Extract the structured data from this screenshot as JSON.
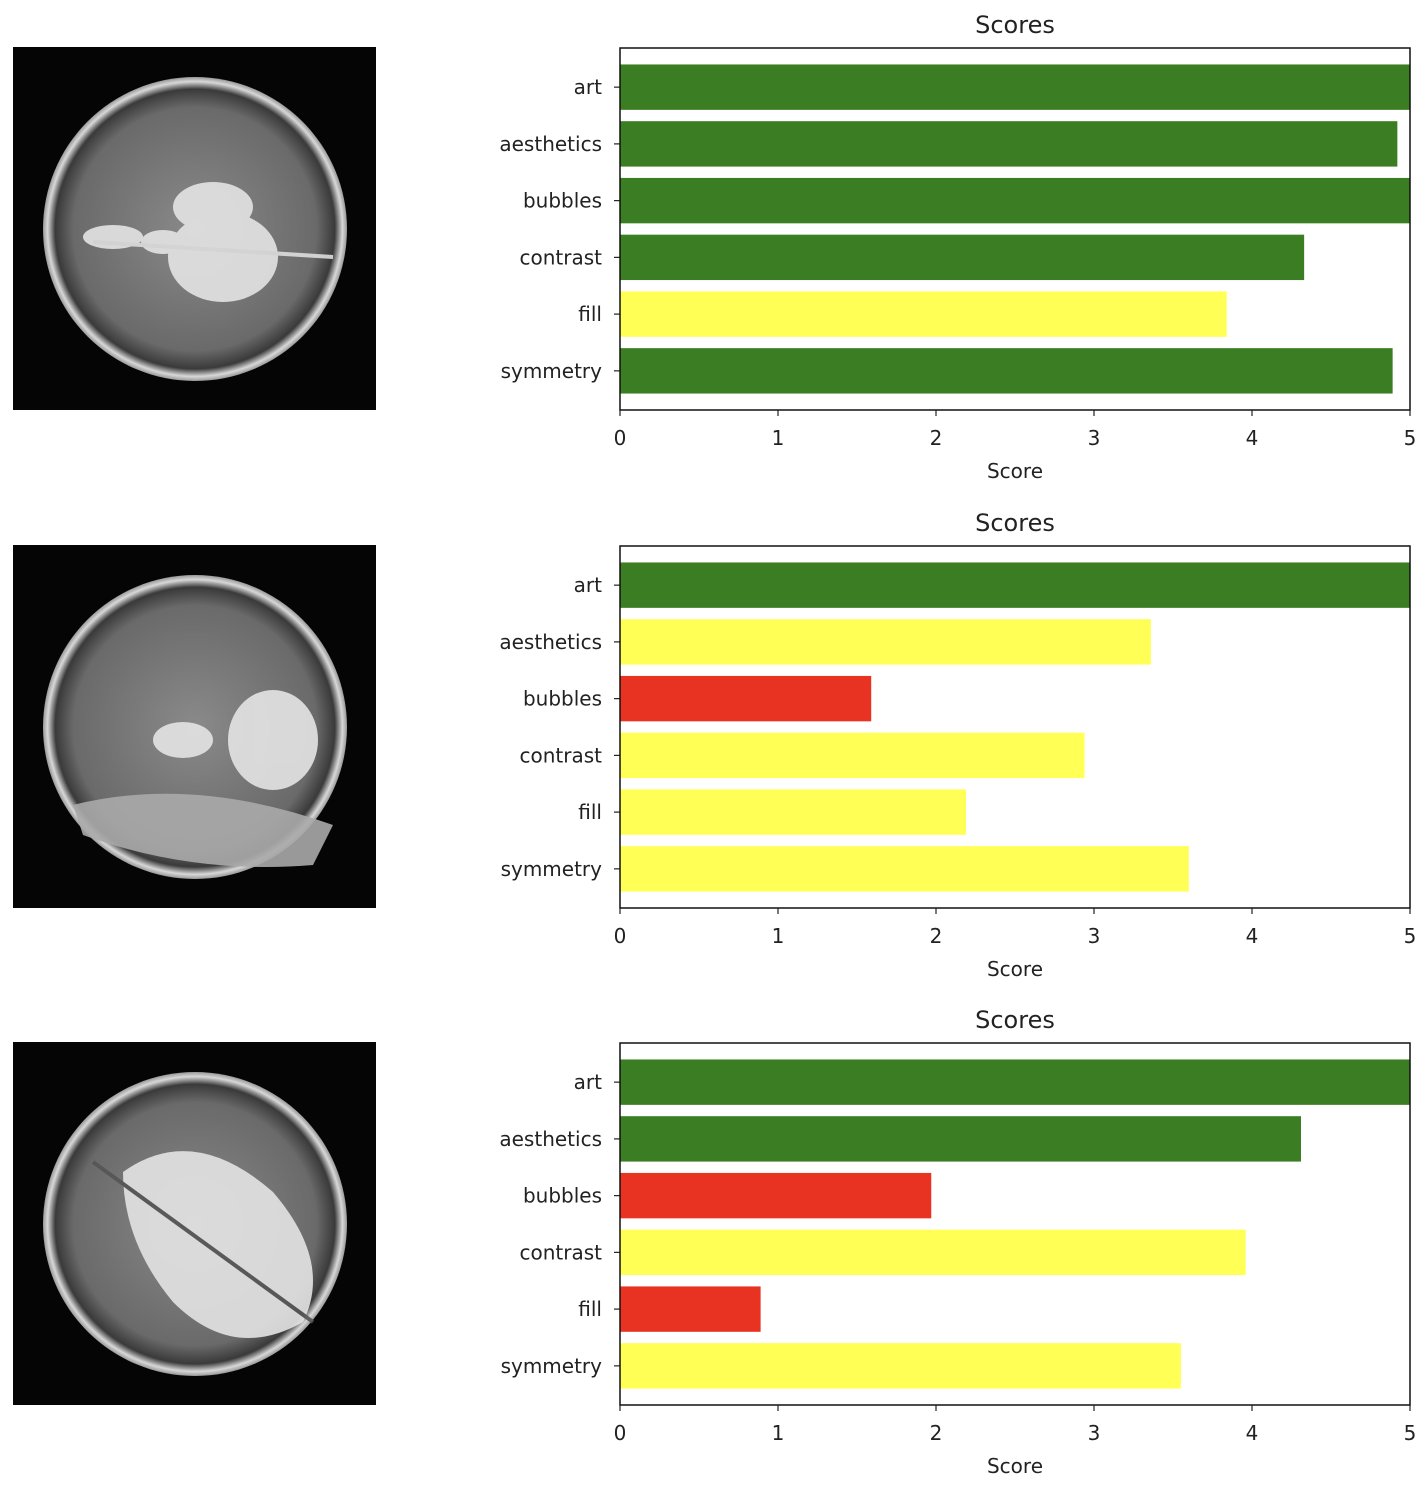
{
  "colors": {
    "good": "#3a7d22",
    "medium": "#ffff55",
    "poor": "#e83323"
  },
  "chart_data": [
    {
      "type": "bar",
      "orientation": "horizontal",
      "title": "Scores",
      "xlabel": "Score",
      "ylabel": "",
      "xlim": [
        0,
        5
      ],
      "xticks": [
        "0",
        "1",
        "2",
        "3",
        "4",
        "5"
      ],
      "categories": [
        "art",
        "aesthetics",
        "bubbles",
        "contrast",
        "fill",
        "symmetry"
      ],
      "values": [
        5.0,
        4.92,
        5.0,
        4.33,
        3.84,
        4.89
      ],
      "bar_colors": [
        "good",
        "good",
        "good",
        "good",
        "medium",
        "good"
      ],
      "grid": false,
      "image": "latte-art-rosetta-heart"
    },
    {
      "type": "bar",
      "orientation": "horizontal",
      "title": "Scores",
      "xlabel": "Score",
      "ylabel": "",
      "xlim": [
        0,
        5
      ],
      "xticks": [
        "0",
        "1",
        "2",
        "3",
        "4",
        "5"
      ],
      "categories": [
        "art",
        "aesthetics",
        "bubbles",
        "contrast",
        "fill",
        "symmetry"
      ],
      "values": [
        5.0,
        3.36,
        1.59,
        2.94,
        2.19,
        3.6
      ],
      "bar_colors": [
        "good",
        "medium",
        "poor",
        "medium",
        "medium",
        "medium"
      ],
      "grid": false,
      "image": "latte-art-faint-heart"
    },
    {
      "type": "bar",
      "orientation": "horizontal",
      "title": "Scores",
      "xlabel": "Score",
      "ylabel": "",
      "xlim": [
        0,
        5
      ],
      "xticks": [
        "0",
        "1",
        "2",
        "3",
        "4",
        "5"
      ],
      "categories": [
        "art",
        "aesthetics",
        "bubbles",
        "contrast",
        "fill",
        "symmetry"
      ],
      "values": [
        5.0,
        4.31,
        1.97,
        3.96,
        0.89,
        3.55
      ],
      "bar_colors": [
        "good",
        "good",
        "poor",
        "medium",
        "poor",
        "medium"
      ],
      "grid": false,
      "image": "latte-art-tulip"
    }
  ]
}
